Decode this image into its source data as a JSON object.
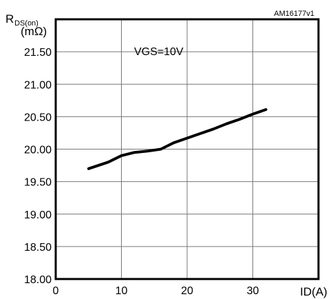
{
  "chart_data": {
    "type": "line",
    "id_label": "AM16177v1",
    "annotation": "VGS=10V",
    "ylabel_main": "R",
    "ylabel_sub": "DS(on)",
    "yunit": "(mΩ)",
    "xlabel": "ID(A)",
    "xlim": [
      0,
      40
    ],
    "ylim": [
      18.0,
      22.0
    ],
    "grid": true,
    "x_ticks": [
      "0",
      "10",
      "20",
      "30"
    ],
    "y_ticks": [
      "18.00",
      "18.50",
      "19.00",
      "19.50",
      "20.00",
      "20.50",
      "21.00",
      "21.50"
    ],
    "series": [
      {
        "x": [
          5,
          8,
          10,
          12,
          14,
          16,
          18,
          20,
          22,
          24,
          26,
          28,
          30,
          32
        ],
        "y": [
          19.7,
          19.8,
          19.9,
          19.95,
          19.97,
          20.0,
          20.1,
          20.17,
          20.24,
          20.31,
          20.39,
          20.46,
          20.54,
          20.61
        ]
      }
    ]
  }
}
